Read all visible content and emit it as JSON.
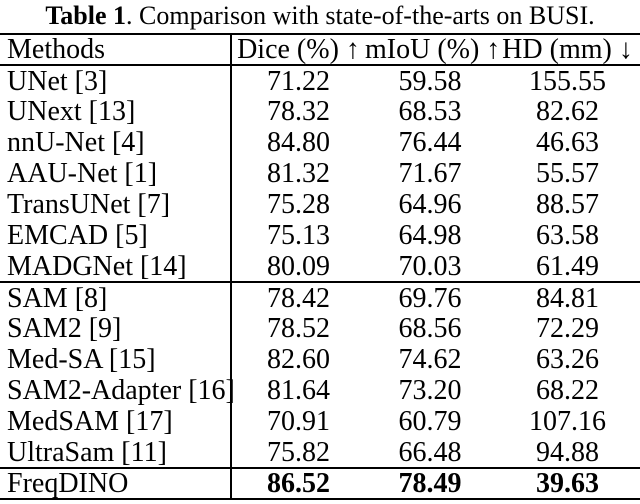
{
  "caption": {
    "label": "Table 1",
    "text": ". Comparison with state-of-the-arts on BUSI."
  },
  "table": {
    "columns": {
      "methods": "Methods",
      "dice": "Dice (%) ↑",
      "miou": "mIoU (%) ↑",
      "hd": "HD (mm) ↓"
    },
    "rows": [
      {
        "method": "UNet [3]",
        "dice": "71.22",
        "miou": "59.58",
        "hd": "155.55"
      },
      {
        "method": "UNext [13]",
        "dice": "78.32",
        "miou": "68.53",
        "hd": "82.62"
      },
      {
        "method": "nnU-Net [4]",
        "dice": "84.80",
        "miou": "76.44",
        "hd": "46.63"
      },
      {
        "method": "AAU-Net [1]",
        "dice": "81.32",
        "miou": "71.67",
        "hd": "55.57"
      },
      {
        "method": "TransUNet [7]",
        "dice": "75.28",
        "miou": "64.96",
        "hd": "88.57"
      },
      {
        "method": "EMCAD [5]",
        "dice": "75.13",
        "miou": "64.98",
        "hd": "63.58"
      },
      {
        "method": "MADGNet [14]",
        "dice": "80.09",
        "miou": "70.03",
        "hd": "61.49"
      },
      {
        "method": "SAM [8]",
        "dice": "78.42",
        "miou": "69.76",
        "hd": "84.81"
      },
      {
        "method": "SAM2 [9]",
        "dice": "78.52",
        "miou": "68.56",
        "hd": "72.29"
      },
      {
        "method": "Med-SA [15]",
        "dice": "82.60",
        "miou": "74.62",
        "hd": "63.26"
      },
      {
        "method": "SAM2-Adapter [16]",
        "dice": "81.64",
        "miou": "73.20",
        "hd": "68.22"
      },
      {
        "method": "MedSAM [17]",
        "dice": "70.91",
        "miou": "60.79",
        "hd": "107.16"
      },
      {
        "method": "UltraSam [11]",
        "dice": "75.82",
        "miou": "66.48",
        "hd": "94.88"
      },
      {
        "method": "FreqDINO",
        "dice": "86.52",
        "miou": "78.49",
        "hd": "39.63"
      }
    ]
  },
  "chart_data": {
    "type": "table",
    "title": "Table 1. Comparison with state-of-the-arts on BUSI.",
    "columns": [
      "Methods",
      "Dice (%) ↑",
      "mIoU (%) ↑",
      "HD (mm) ↓"
    ],
    "series": [
      {
        "name": "Dice (%)",
        "values": [
          71.22,
          78.32,
          84.8,
          81.32,
          75.28,
          75.13,
          80.09,
          78.42,
          78.52,
          82.6,
          81.64,
          70.91,
          75.82,
          86.52
        ]
      },
      {
        "name": "mIoU (%)",
        "values": [
          59.58,
          68.53,
          76.44,
          71.67,
          64.96,
          64.98,
          70.03,
          69.76,
          68.56,
          74.62,
          73.2,
          60.79,
          66.48,
          78.49
        ]
      },
      {
        "name": "HD (mm)",
        "values": [
          155.55,
          82.62,
          46.63,
          55.57,
          88.57,
          63.58,
          61.49,
          84.81,
          72.29,
          63.26,
          68.22,
          107.16,
          94.88,
          39.63
        ]
      }
    ],
    "categories": [
      "UNet [3]",
      "UNext [13]",
      "nnU-Net [4]",
      "AAU-Net [1]",
      "TransUNet [7]",
      "EMCAD [5]",
      "MADGNet [14]",
      "SAM [8]",
      "SAM2 [9]",
      "Med-SA [15]",
      "SAM2-Adapter [16]",
      "MedSAM [17]",
      "UltraSam [11]",
      "FreqDINO"
    ],
    "best_row": "FreqDINO"
  }
}
